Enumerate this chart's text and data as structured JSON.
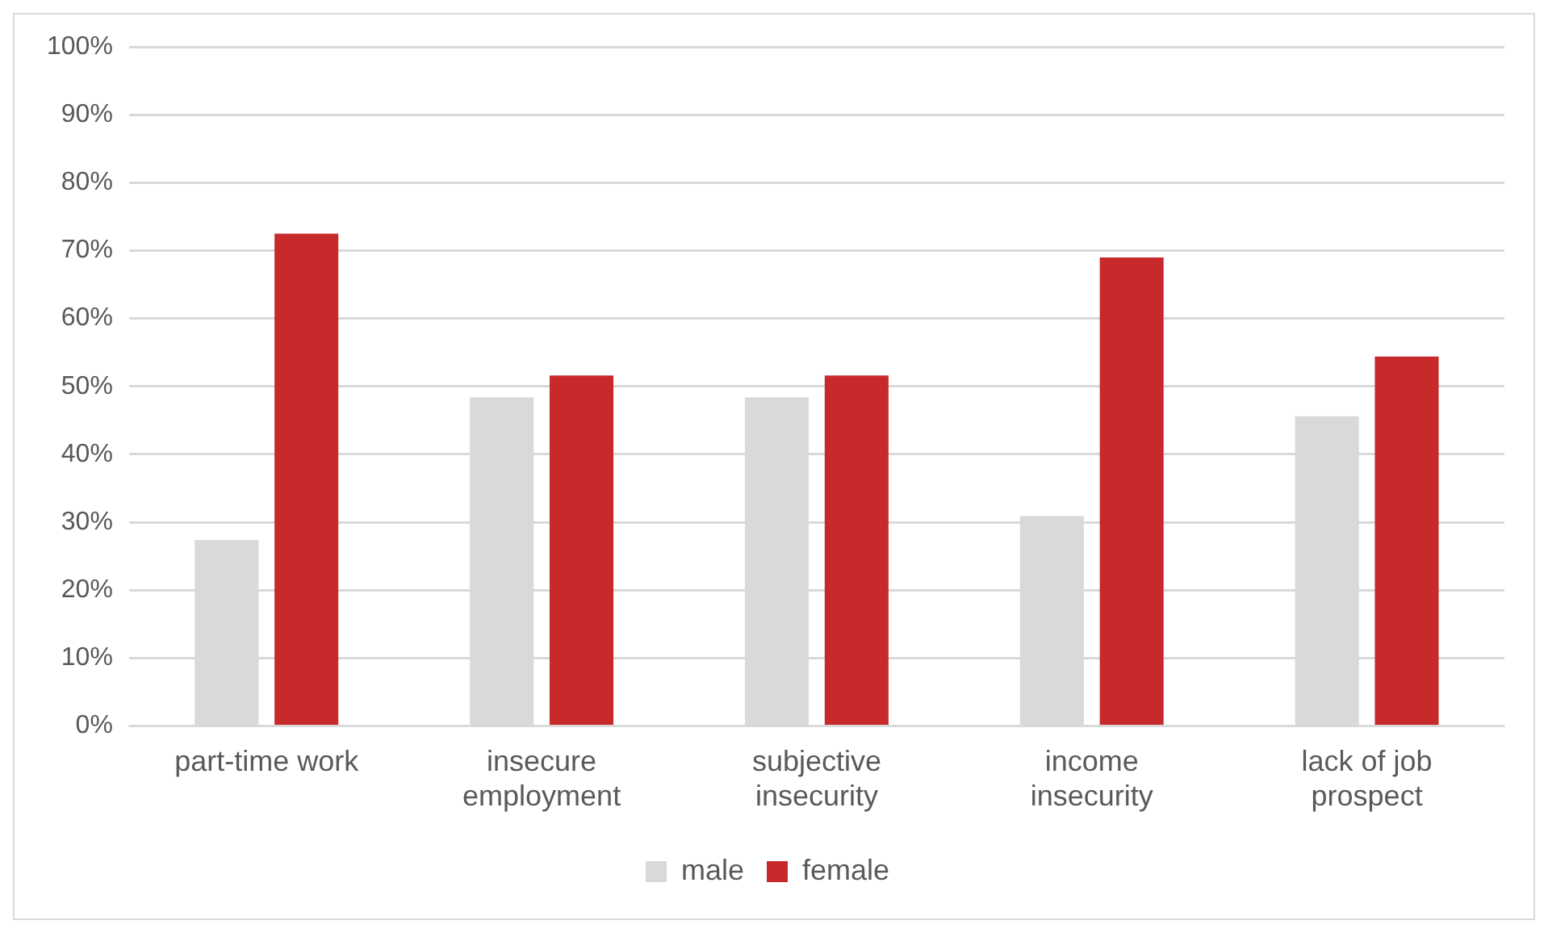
{
  "chart_data": {
    "type": "bar",
    "categories": [
      "part-time work",
      "insecure employment",
      "subjective insecurity",
      "income insecurity",
      "lack of job prospect"
    ],
    "series": [
      {
        "name": "male",
        "color": "#d9d9d9",
        "values": [
          27.4,
          48.4,
          48.4,
          30.9,
          45.6
        ]
      },
      {
        "name": "female",
        "color": "#c8292b",
        "values": [
          72.5,
          51.6,
          51.6,
          69.0,
          54.4
        ]
      }
    ],
    "ylim": [
      0,
      100
    ],
    "yticks": [
      {
        "value": 0,
        "label": "0%"
      },
      {
        "value": 10,
        "label": "10%"
      },
      {
        "value": 20,
        "label": "20%"
      },
      {
        "value": 30,
        "label": "30%"
      },
      {
        "value": 40,
        "label": "40%"
      },
      {
        "value": 50,
        "label": "50%"
      },
      {
        "value": 60,
        "label": "60%"
      },
      {
        "value": 70,
        "label": "70%"
      },
      {
        "value": 80,
        "label": "80%"
      },
      {
        "value": 90,
        "label": "90%"
      },
      {
        "value": 100,
        "label": "100%"
      }
    ],
    "grid": "y",
    "legend": "bottom"
  }
}
